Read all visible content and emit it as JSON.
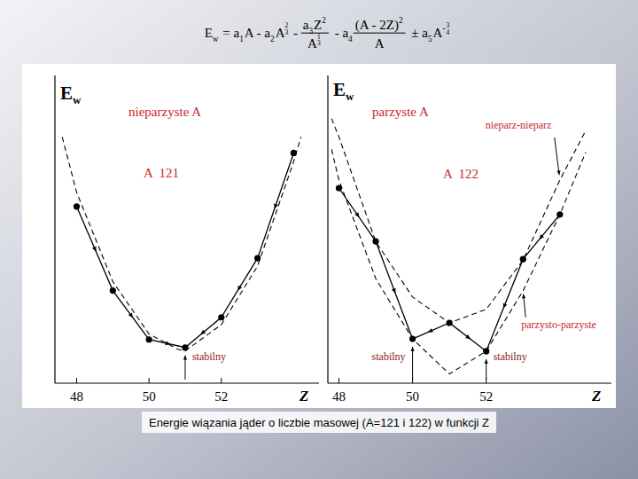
{
  "formula": {
    "parts": [
      {
        "text": "E"
      },
      {
        "sub": "w"
      },
      {
        "text": " = a"
      },
      {
        "sub": "1"
      },
      {
        "text": "A - a"
      },
      {
        "sub": "2"
      },
      {
        "text": "A"
      },
      {
        "sup_frac": [
          "2",
          "3"
        ]
      },
      {
        "text": " - "
      },
      {
        "frac": {
          "num": [
            {
              "text": "a"
            },
            {
              "sub": "3"
            },
            {
              "text": "Z"
            },
            {
              "sup": "2"
            }
          ],
          "den": [
            {
              "text": "A"
            },
            {
              "sup_frac": [
                "1",
                "3"
              ]
            }
          ]
        }
      },
      {
        "text": " - a"
      },
      {
        "sub": "4"
      },
      {
        "frac": {
          "num": [
            {
              "text": "(A - 2Z)"
            },
            {
              "sup": "2"
            }
          ],
          "den": [
            {
              "text": "A"
            }
          ]
        }
      },
      {
        "text": " ± a"
      },
      {
        "sub": "5"
      },
      {
        "text": "A"
      },
      {
        "sup": "-"
      },
      {
        "sup_frac": [
          "3",
          "4"
        ]
      }
    ]
  },
  "chart_data": [
    {
      "type": "line",
      "title": "nieparzyste A",
      "subtitle": "A  121",
      "ylabel": {
        "text": "E",
        "sub": "w"
      },
      "xlabel": "Z",
      "xlim": [
        47.4,
        54.7
      ],
      "xticks": [
        48,
        50,
        52
      ],
      "ylim": [
        0,
        100
      ],
      "tick_labels": "x",
      "series": [
        {
          "x": [
            48,
            49,
            50,
            51,
            52,
            53,
            54
          ],
          "values": [
            57.4,
            30.1,
            14.2,
            11.6,
            21.4,
            40.6,
            74.8
          ],
          "color": "#000000",
          "marker": "circle",
          "line_style": "solid"
        },
        {
          "x": [
            47.6,
            48,
            49,
            50,
            50.8,
            51,
            52,
            53,
            54,
            54.2
          ],
          "values": [
            80,
            62,
            33,
            16,
            11,
            10.5,
            19,
            38,
            72,
            80
          ],
          "color": "#000000",
          "line_style": "dashed"
        }
      ],
      "annotations": [
        {
          "text": "stabilny",
          "x": 51
        }
      ]
    },
    {
      "type": "line",
      "title": "parzyste A",
      "subtitle": "A  122",
      "ylabel": {
        "text": "E",
        "sub": "w"
      },
      "xlabel": "Z",
      "xlim": [
        47.7,
        55.4
      ],
      "xticks": [
        48,
        50,
        52
      ],
      "ylim": [
        0,
        100
      ],
      "tick_labels": "x",
      "series": [
        {
          "x": [
            48,
            49,
            50,
            51,
            52,
            53,
            54
          ],
          "values": [
            63.4,
            46.1,
            14.4,
            19.6,
            10.4,
            40.3,
            54.8
          ],
          "color": "#000000",
          "marker": "circle",
          "line_style": "solid"
        },
        {
          "name": "nieparz-nieparz",
          "x": [
            47.8,
            48,
            49,
            50,
            51,
            52,
            53,
            54,
            54.7
          ],
          "values": [
            86,
            80,
            46,
            28,
            19.6,
            24,
            40,
            66,
            82
          ],
          "color": "#000000",
          "line_style": "dashed"
        },
        {
          "name": "parzysto-parzyste",
          "x": [
            47.8,
            48,
            49,
            50,
            51,
            52,
            53,
            54,
            54.7
          ],
          "values": [
            76,
            66,
            34,
            14.4,
            3,
            10.4,
            30,
            54.8,
            75
          ],
          "color": "#000000",
          "line_style": "dashed"
        }
      ],
      "annotations": [
        {
          "text": "stabilny",
          "x": 50
        },
        {
          "text": "stabilny",
          "x": 52
        }
      ]
    }
  ],
  "caption": "Energie wiązania jąder o liczbie masowej (A=121 i 122) w funkcji Z"
}
